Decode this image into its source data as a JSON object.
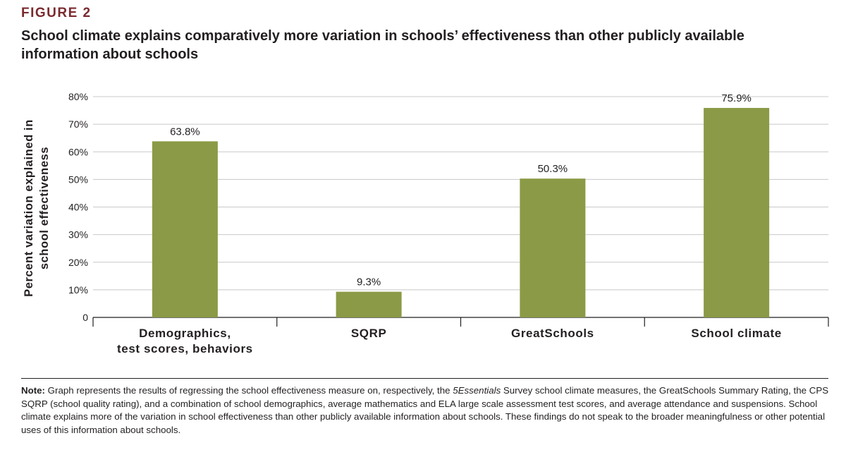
{
  "figure_label": "FIGURE 2",
  "title": "School climate explains comparatively more variation in schools’ effectiveness than other publicly available information about schools",
  "note": {
    "prefix": "Note:",
    "text_before": " Graph represents the results of regressing the school effectiveness measure on, respectively, the ",
    "italic": "5Essentials",
    "text_after": " Survey school climate measures, the GreatSchools Summary Rating, the CPS SQRP (school quality rating), and a combination of school demographics, average mathematics and ELA large scale assessment test scores, and average attendance and suspensions. School climate explains more of the variation in school effectiveness than other publicly available information about schools. These findings do not speak to the broader meaningfulness or other potential uses of this information about schools."
  },
  "colors": {
    "bar": "#8a9a46",
    "grid": "#c8c8c8",
    "axis": "#231f20",
    "title": "#7a2a2f"
  },
  "chart_data": {
    "type": "bar",
    "categories": [
      [
        "Demographics,",
        "test scores, behaviors"
      ],
      [
        "SQRP"
      ],
      [
        "GreatSchools"
      ],
      [
        "School climate"
      ]
    ],
    "values": [
      63.8,
      9.3,
      50.3,
      75.9
    ],
    "value_labels": [
      "63.8%",
      "9.3%",
      "50.3%",
      "75.9%"
    ],
    "ylabel": [
      "Percent variation explained in",
      "school effectiveness"
    ],
    "ylim": [
      0,
      80
    ],
    "yticks": [
      0,
      10,
      20,
      30,
      40,
      50,
      60,
      70,
      80
    ],
    "ytick_labels": [
      "0",
      "10%",
      "20%",
      "30%",
      "40%",
      "50%",
      "60%",
      "70%",
      "80%"
    ],
    "grid": true,
    "legend": "none"
  }
}
